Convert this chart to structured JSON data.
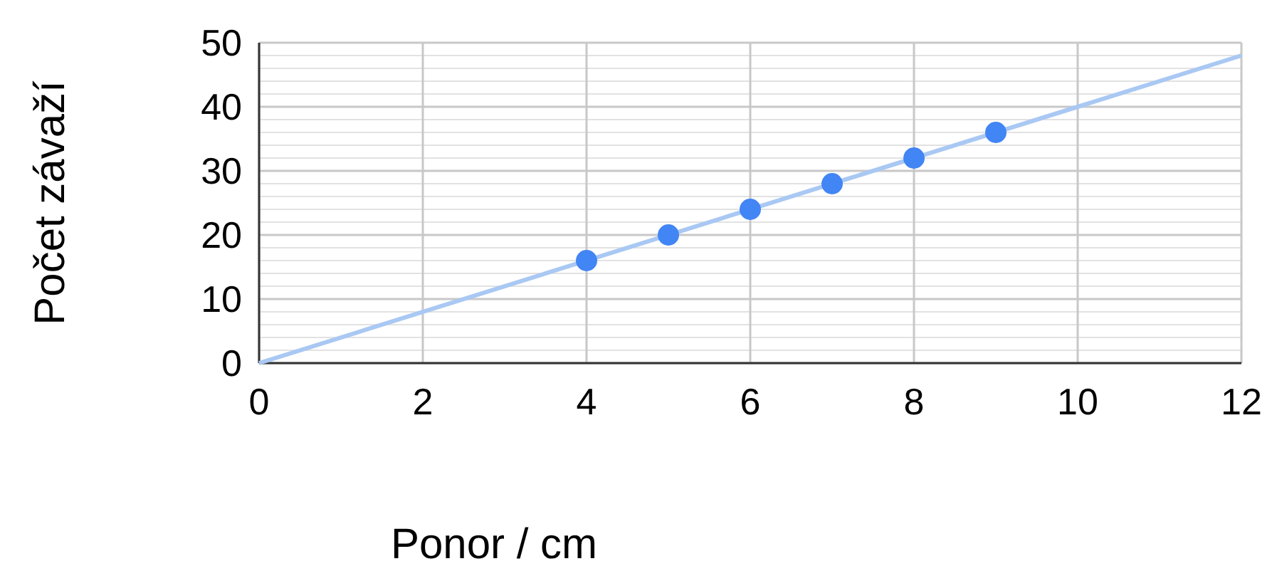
{
  "chart_data": {
    "type": "scatter",
    "xlabel": "Ponor / cm",
    "ylabel": "Počet závaží",
    "xlim": [
      0,
      12
    ],
    "xticks": [
      0,
      2,
      4,
      6,
      8,
      10,
      12
    ],
    "ylim": [
      0,
      50
    ],
    "yticks": [
      0,
      {
        "value": 2,
        "label": null
      },
      {
        "value": 4,
        "label": null
      },
      {
        "value": 6,
        "label": null
      },
      {
        "value": 8,
        "label": null
      },
      10,
      {
        "value": 12,
        "label": null
      },
      {
        "value": 14,
        "label": null
      },
      {
        "value": 16,
        "label": null
      },
      {
        "value": 18,
        "label": null
      },
      20,
      {
        "value": 22,
        "label": null
      },
      {
        "value": 24,
        "label": null
      },
      {
        "value": 26,
        "label": null
      },
      {
        "value": 28,
        "label": null
      },
      30,
      {
        "value": 32,
        "label": null
      },
      {
        "value": 34,
        "label": null
      },
      {
        "value": 36,
        "label": null
      },
      {
        "value": 38,
        "label": null
      },
      40,
      {
        "value": 42,
        "label": null
      },
      {
        "value": 44,
        "label": null
      },
      {
        "value": 46,
        "label": null
      },
      {
        "value": 48,
        "label": null
      },
      50
    ],
    "grid": true,
    "marker": "circle",
    "series": [
      {
        "type": "line",
        "marker": "none",
        "color": "#a9c8f3",
        "x": [
          0,
          12
        ],
        "values": [
          0,
          48
        ]
      },
      {
        "color": "#4285f4",
        "x": [
          4,
          5,
          6,
          7,
          8,
          9
        ],
        "values": [
          16,
          20,
          24,
          28,
          32,
          36
        ]
      }
    ]
  }
}
